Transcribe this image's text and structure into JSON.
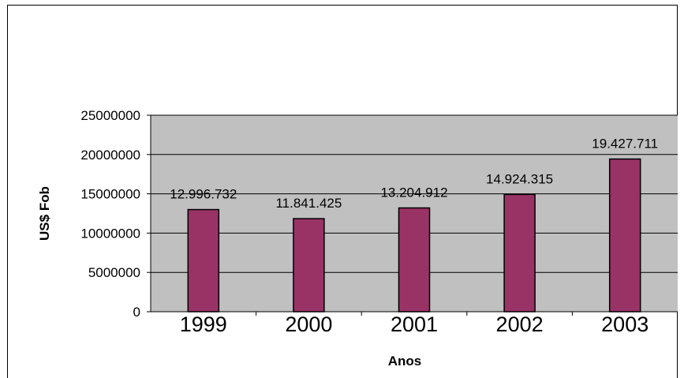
{
  "chart_data": {
    "type": "bar",
    "title": "",
    "xlabel": "Anos",
    "ylabel": "US$ Fob",
    "categories": [
      "1999",
      "2000",
      "2001",
      "2002",
      "2003"
    ],
    "values": [
      12996732,
      11841425,
      13204912,
      14924315,
      19427711
    ],
    "data_labels": [
      "12.996.732",
      "11.841.425",
      "13.204.912",
      "14.924.315",
      "19.427.711"
    ],
    "ylim": [
      0,
      25000000
    ],
    "yticks": [
      0,
      5000000,
      10000000,
      15000000,
      20000000,
      25000000
    ],
    "ytick_labels": [
      "0",
      "5000000",
      "10000000",
      "15000000",
      "20000000",
      "25000000"
    ],
    "grid": true,
    "legend": "none",
    "colors": {
      "bar_fill": "#993366",
      "bar_stroke": "#000000",
      "plot_background": "#c0c0c0",
      "gridline": "#000000"
    }
  }
}
